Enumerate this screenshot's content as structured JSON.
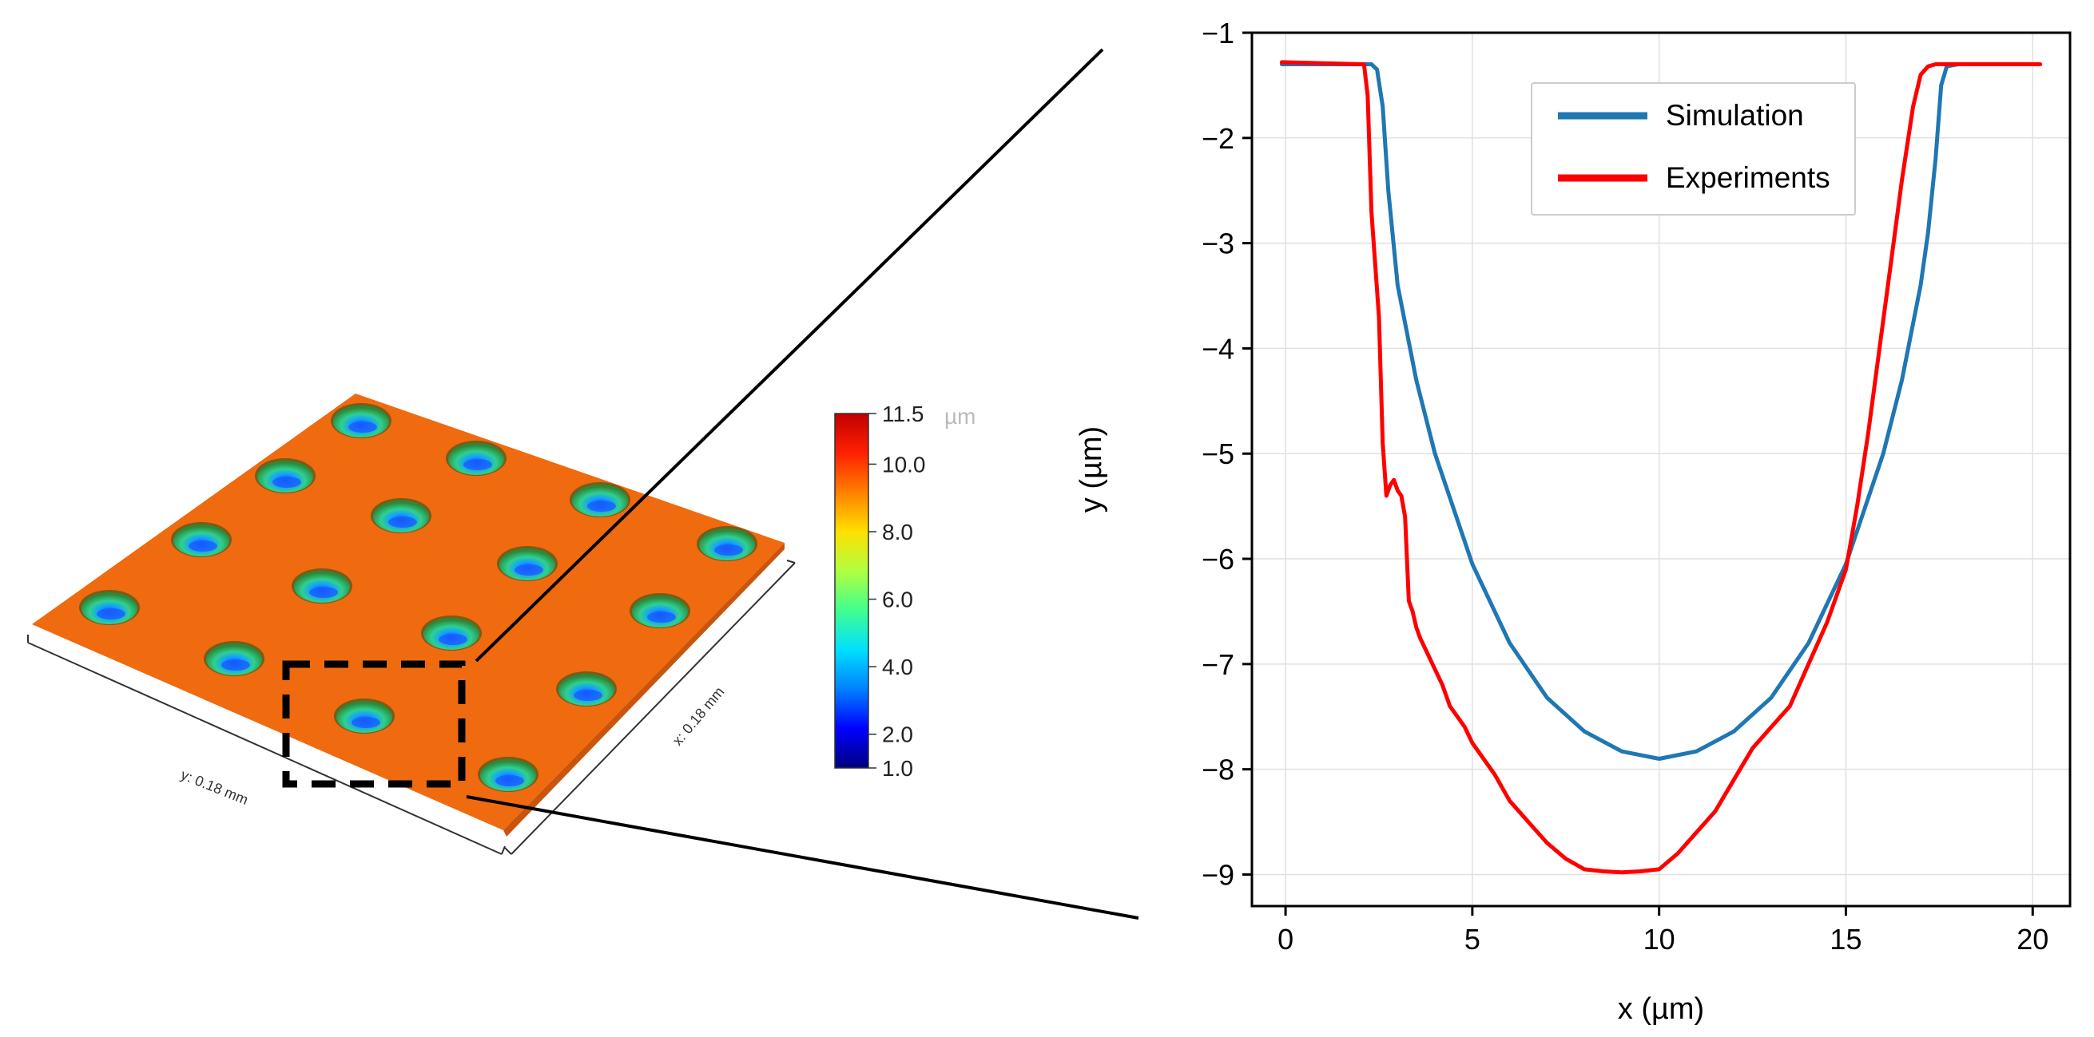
{
  "surface_panel": {
    "scale_x_label": "x: 0.18 mm",
    "scale_y_label": "y: 0.18 mm",
    "surface_color": "#f06a10",
    "zoom_box_color": "#000000"
  },
  "colorbar": {
    "unit": "µm",
    "ticks": [
      "11.5",
      "10.0",
      "8.0",
      "6.0",
      "4.0",
      "2.0",
      "1.0"
    ],
    "tick_values": [
      11.5,
      10.0,
      8.0,
      6.0,
      4.0,
      2.0,
      1.0
    ],
    "range": [
      1.0,
      11.5
    ],
    "colors": [
      "#00007f",
      "#0000ff",
      "#0080ff",
      "#00e0ff",
      "#40ff90",
      "#b0ff40",
      "#ffe000",
      "#ff8000",
      "#ff2000",
      "#c00000"
    ]
  },
  "chart_data": {
    "type": "line",
    "title": "",
    "xlabel": "x (µm)",
    "ylabel": "y (µm)",
    "xlim": [
      -0.9,
      21.0
    ],
    "ylim": [
      -9.3,
      -1.0
    ],
    "x_ticks": [
      0,
      5,
      10,
      15,
      20
    ],
    "x_tick_labels": [
      "0",
      "5",
      "10",
      "15",
      "20"
    ],
    "y_ticks": [
      -1,
      -2,
      -3,
      -4,
      -5,
      -6,
      -7,
      -8,
      -9
    ],
    "y_tick_labels": [
      "−1",
      "−2",
      "−3",
      "−4",
      "−5",
      "−6",
      "−7",
      "−8",
      "−9"
    ],
    "grid": true,
    "legend_position": "top-right",
    "series": [
      {
        "name": "Simulation",
        "color": "#1f77b4",
        "x": [
          -0.1,
          2.0,
          2.3,
          2.45,
          2.6,
          2.75,
          3.0,
          3.5,
          4.0,
          5.0,
          6.0,
          7.0,
          8.0,
          9.0,
          10.0,
          11.0,
          12.0,
          13.0,
          14.0,
          15.0,
          16.0,
          16.5,
          17.0,
          17.2,
          17.4,
          17.55,
          17.7,
          18.0,
          20.0
        ],
        "values": [
          -1.3,
          -1.3,
          -1.3,
          -1.35,
          -1.7,
          -2.5,
          -3.4,
          -4.3,
          -5.0,
          -6.05,
          -6.8,
          -7.32,
          -7.64,
          -7.83,
          -7.9,
          -7.83,
          -7.64,
          -7.32,
          -6.8,
          -6.05,
          -5.0,
          -4.3,
          -3.4,
          -2.9,
          -2.2,
          -1.5,
          -1.32,
          -1.3,
          -1.3
        ]
      },
      {
        "name": "Experiments",
        "color": "#ff0000",
        "x": [
          -0.1,
          2.1,
          2.2,
          2.3,
          2.4,
          2.5,
          2.6,
          2.7,
          2.8,
          2.9,
          3.0,
          3.1,
          3.2,
          3.3,
          3.4,
          3.5,
          3.6,
          3.8,
          4.0,
          4.2,
          4.4,
          4.6,
          4.8,
          5.0,
          5.3,
          5.6,
          6.0,
          6.5,
          7.0,
          7.5,
          8.0,
          8.5,
          9.0,
          9.5,
          10.0,
          10.5,
          11.0,
          11.5,
          12.0,
          12.5,
          13.0,
          13.5,
          14.0,
          14.5,
          15.0,
          15.3,
          15.6,
          15.9,
          16.2,
          16.5,
          16.8,
          17.0,
          17.2,
          17.4,
          17.5,
          17.6,
          17.7,
          17.8,
          20.2
        ],
        "values": [
          -1.28,
          -1.3,
          -1.6,
          -2.7,
          -3.2,
          -3.7,
          -4.9,
          -5.4,
          -5.3,
          -5.25,
          -5.35,
          -5.4,
          -5.6,
          -6.4,
          -6.5,
          -6.65,
          -6.75,
          -6.9,
          -7.05,
          -7.2,
          -7.4,
          -7.5,
          -7.6,
          -7.75,
          -7.9,
          -8.05,
          -8.3,
          -8.5,
          -8.7,
          -8.85,
          -8.95,
          -8.97,
          -8.98,
          -8.97,
          -8.95,
          -8.8,
          -8.6,
          -8.4,
          -8.1,
          -7.8,
          -7.6,
          -7.4,
          -7.0,
          -6.6,
          -6.1,
          -5.5,
          -4.8,
          -4.0,
          -3.2,
          -2.4,
          -1.7,
          -1.4,
          -1.32,
          -1.3,
          -1.3,
          -1.3,
          -1.3,
          -1.3,
          -1.3
        ]
      }
    ]
  }
}
